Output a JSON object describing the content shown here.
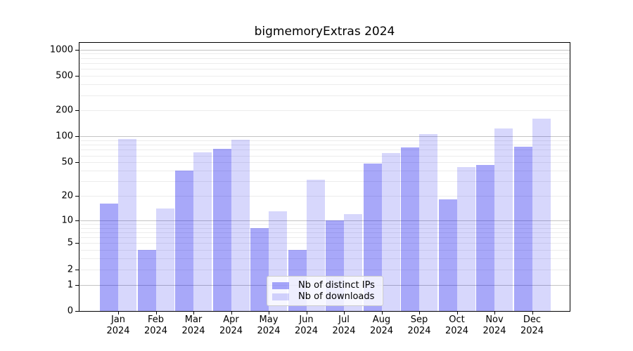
{
  "chart_data": {
    "type": "bar",
    "title": "bigmemoryExtras 2024",
    "categories": [
      "Jan",
      "Feb",
      "Mar",
      "Apr",
      "May",
      "Jun",
      "Jul",
      "Aug",
      "Sep",
      "Oct",
      "Nov",
      "Dec"
    ],
    "category_year": "2024",
    "series": [
      {
        "name": "Nb of distinct IPs",
        "color": "rgba(0,0,238,0.34)",
        "values": [
          16,
          4,
          40,
          72,
          8,
          4,
          10,
          48,
          74,
          18,
          47,
          76
        ]
      },
      {
        "name": "Nb of downloads",
        "color": "rgba(0,0,238,0.155)",
        "values": [
          93,
          14,
          65,
          92,
          13,
          31,
          12,
          64,
          107,
          44,
          124,
          160
        ]
      }
    ],
    "yscale": "log1p",
    "yticks": [
      0,
      1,
      2,
      5,
      10,
      20,
      50,
      100,
      200,
      500,
      1000
    ],
    "ylim": [
      0,
      1200
    ],
    "grid": {
      "major_lines": [
        1,
        10,
        100,
        1000
      ],
      "minor_lines": [
        2,
        3,
        4,
        5,
        6,
        7,
        8,
        9,
        20,
        30,
        40,
        50,
        60,
        70,
        80,
        90,
        200,
        300,
        400,
        500,
        600,
        700,
        800,
        900
      ],
      "major_color": "#c4c4c4",
      "minor_color": "#ececec"
    },
    "legend_position": "lower center",
    "xlabel": "",
    "ylabel": ""
  }
}
